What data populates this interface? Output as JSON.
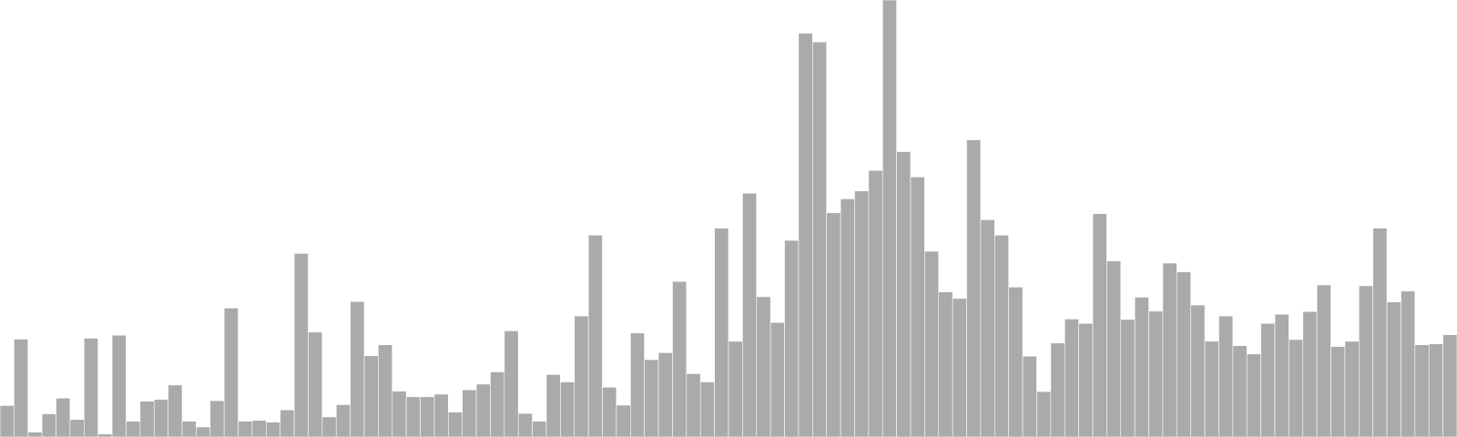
{
  "colors": {
    "background": "#ffffff",
    "bar_fill": "#aaaaaa",
    "bar_stroke": "#ffffff"
  },
  "chart_data": {
    "type": "bar",
    "title": "",
    "xlabel": "",
    "ylabel": "",
    "grid": false,
    "legend": "none",
    "ylim": [
      0,
      100
    ],
    "values": [
      7.2,
      22.4,
      1.1,
      5.3,
      8.9,
      4.0,
      22.6,
      0.7,
      23.3,
      3.6,
      8.2,
      8.6,
      11.9,
      3.6,
      2.3,
      8.3,
      29.5,
      3.6,
      3.8,
      3.4,
      6.2,
      42.0,
      24.0,
      4.6,
      7.4,
      31.0,
      18.6,
      21.1,
      10.5,
      9.2,
      9.2,
      9.8,
      5.7,
      10.8,
      12.1,
      14.9,
      24.3,
      5.4,
      3.6,
      14.3,
      12.6,
      27.7,
      46.2,
      11.4,
      7.3,
      23.8,
      17.7,
      19.3,
      35.6,
      14.5,
      12.6,
      47.8,
      21.9,
      55.8,
      32.1,
      26.2,
      45.0,
      92.4,
      90.4,
      51.3,
      54.5,
      56.3,
      61.0,
      100.0,
      65.3,
      59.5,
      42.5,
      33.2,
      31.7,
      68.0,
      49.7,
      46.2,
      34.3,
      18.5,
      10.4,
      21.5,
      27.0,
      26.0,
      51.1,
      40.3,
      26.9,
      32.0,
      28.8,
      39.8,
      37.8,
      30.2,
      21.9,
      27.7,
      20.9,
      19.0,
      26.0,
      28.1,
      22.3,
      28.7,
      34.8,
      20.7,
      21.9,
      34.6,
      47.8,
      30.9,
      33.4,
      21.1,
      21.3,
      23.4
    ]
  }
}
